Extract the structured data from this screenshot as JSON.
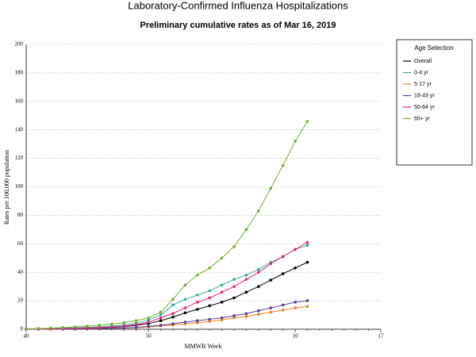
{
  "chart_data": {
    "type": "line",
    "title": "Laboratory-Confirmed Influenza Hospitalizations",
    "subtitle": "Preliminary cumulative rates as of Mar 16, 2019",
    "x_label": "MMWR Week",
    "y_label": "Rates per 100,000 population",
    "legend_title": "Age Selection",
    "legend": "right",
    "grid": true,
    "categories": [
      "40",
      null,
      null,
      null,
      null,
      null,
      null,
      null,
      null,
      null,
      "50",
      null,
      null,
      null,
      null,
      null,
      null,
      null,
      null,
      null,
      null,
      null,
      "10",
      null,
      null,
      null,
      null,
      null,
      null,
      "17"
    ],
    "ylim": [
      0,
      200
    ],
    "yticks": [
      0,
      20,
      40,
      60,
      80,
      100,
      120,
      140,
      160,
      180,
      200
    ],
    "series": [
      {
        "name": "Overall",
        "color": "#000000",
        "values": [
          0.1,
          0.2,
          0.3,
          0.4,
          0.6,
          0.8,
          1,
          1.4,
          1.9,
          2.7,
          4,
          6,
          8.5,
          11.5,
          14,
          16.5,
          19,
          22,
          26,
          30,
          34.5,
          39,
          43,
          47,
          null,
          null,
          null,
          null,
          null,
          null
        ]
      },
      {
        "name": "0-4 yr",
        "color": "#35aa9a",
        "values": [
          0.2,
          0.3,
          0.5,
          0.7,
          1,
          1.3,
          1.7,
          2.2,
          3,
          4.2,
          6.5,
          10,
          17,
          21,
          24,
          27,
          31,
          35,
          38,
          42,
          47,
          51,
          56,
          59,
          null,
          null,
          null,
          null,
          null,
          null
        ]
      },
      {
        "name": "5-17 yr",
        "color": "#e8801e",
        "values": [
          0.05,
          0.1,
          0.15,
          0.2,
          0.3,
          0.4,
          0.5,
          0.6,
          0.8,
          1.1,
          1.6,
          2.3,
          3,
          3.8,
          4.5,
          5.5,
          6.5,
          8,
          9,
          10.5,
          12,
          13.5,
          15,
          16,
          null,
          null,
          null,
          null,
          null,
          null
        ]
      },
      {
        "name": "18-49 yr",
        "color": "#5b3d94",
        "values": [
          0.05,
          0.1,
          0.15,
          0.2,
          0.3,
          0.4,
          0.5,
          0.7,
          0.9,
          1.3,
          2,
          2.8,
          3.8,
          5,
          6,
          7,
          8,
          9.5,
          11,
          13,
          15,
          17,
          19,
          20,
          null,
          null,
          null,
          null,
          null,
          null
        ]
      },
      {
        "name": "50-64 yr",
        "color": "#e5287e",
        "values": [
          0.1,
          0.2,
          0.3,
          0.5,
          0.7,
          0.9,
          1.2,
          1.6,
          2.2,
          3.2,
          5,
          8,
          11,
          15,
          19,
          22,
          26,
          30,
          35,
          40,
          46,
          51,
          56,
          61,
          null,
          null,
          null,
          null,
          null,
          null
        ]
      },
      {
        "name": "65+ yr",
        "color": "#6cb12e",
        "values": [
          0.3,
          0.5,
          0.8,
          1.2,
          1.6,
          2.2,
          2.8,
          3.6,
          4.6,
          6,
          8,
          12,
          21,
          31,
          38,
          43,
          50,
          58,
          70,
          83,
          99,
          115,
          132,
          146,
          null,
          null,
          null,
          null,
          null,
          null
        ]
      }
    ]
  }
}
